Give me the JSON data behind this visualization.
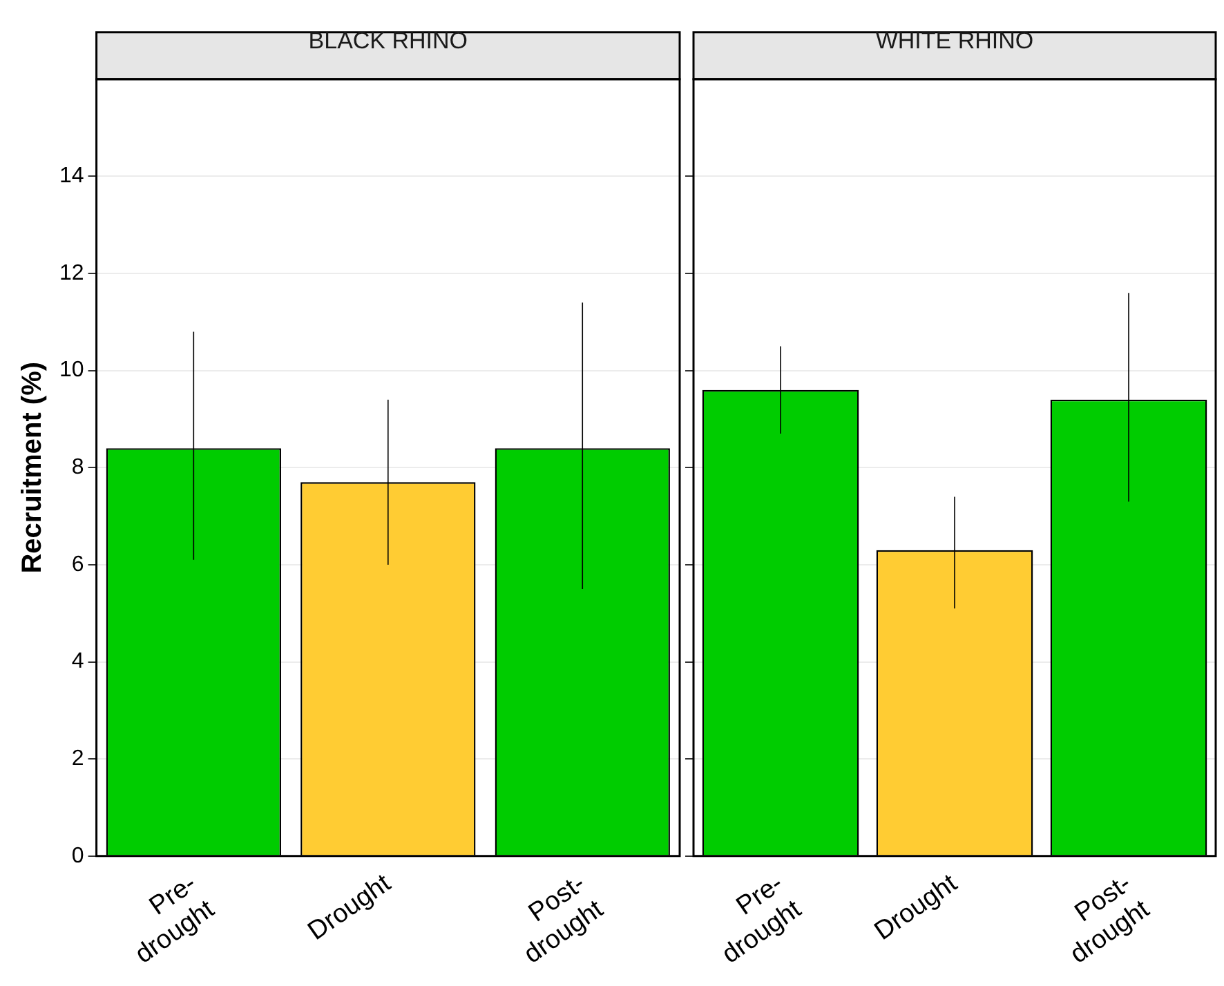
{
  "chart_data": [
    {
      "type": "bar",
      "title": "BLACK RHINO",
      "ylabel": "Recruitment (%)",
      "categories": [
        "Pre-drought",
        "Drought",
        "Post-drought"
      ],
      "values": [
        8.4,
        7.7,
        8.4
      ],
      "colors": [
        "#00cc00",
        "#ffcc33",
        "#00cc00"
      ],
      "errors": [
        [
          6.1,
          10.8
        ],
        [
          6.0,
          9.4
        ],
        [
          5.5,
          11.4
        ]
      ],
      "ylim": [
        0,
        16
      ],
      "yticks": [
        0,
        2,
        4,
        6,
        8,
        10,
        12,
        14
      ],
      "grid": "y"
    },
    {
      "type": "bar",
      "title": "WHITE RHINO",
      "categories": [
        "Pre-drought",
        "Drought",
        "Post-drought"
      ],
      "values": [
        9.6,
        6.3,
        9.4
      ],
      "colors": [
        "#00cc00",
        "#ffcc33",
        "#00cc00"
      ],
      "errors": [
        [
          8.7,
          10.5
        ],
        [
          5.1,
          7.4
        ],
        [
          7.3,
          11.6
        ]
      ],
      "ylim": [
        0,
        16
      ],
      "yticks": [
        0,
        2,
        4,
        6,
        8,
        10,
        12,
        14
      ],
      "grid": "y",
      "tick_labels": "x"
    }
  ]
}
